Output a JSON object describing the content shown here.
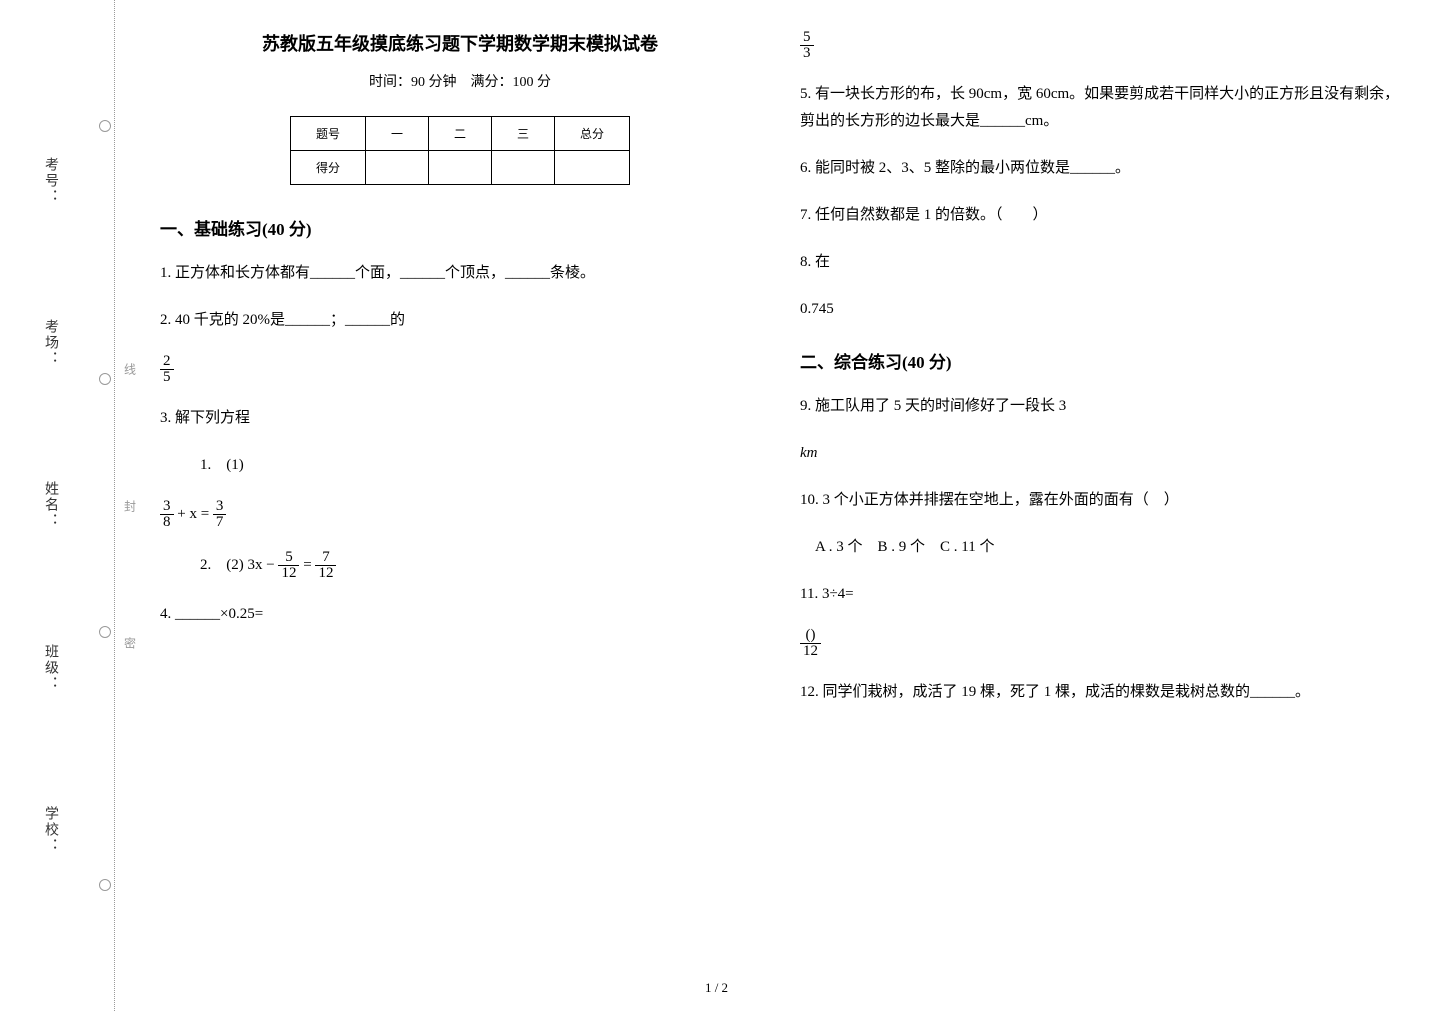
{
  "sidebar": {
    "labels": [
      "考号：",
      "考场：",
      "姓名：",
      "班级：",
      "学校："
    ],
    "dotted_words": [
      "线",
      "封",
      "密"
    ]
  },
  "header": {
    "title": "苏教版五年级摸底练习题下学期数学期末模拟试卷",
    "subtitle": "时间：90 分钟　满分：100 分"
  },
  "score_table": {
    "headers": [
      "题号",
      "一",
      "二",
      "三",
      "总分"
    ],
    "row_label": "得分"
  },
  "section1": {
    "title": "一、基础练习(40 分)",
    "q1": "1. 正方体和长方体都有______个面，______个顶点，______条棱。",
    "q2": {
      "text_a": "2. 40 千克的 20%是______；______的",
      "frac_num": "2",
      "frac_den": "5"
    },
    "q3": {
      "text": "3. 解下列方程",
      "sub1": "1.　(1)",
      "eq1_left_num": "3",
      "eq1_left_den": "8",
      "eq1_mid": "+ x =",
      "eq1_right_num": "3",
      "eq1_right_den": "7",
      "sub2": "2.　(2)",
      "eq2_a": "3x −",
      "eq2_b_num": "5",
      "eq2_b_den": "12",
      "eq2_c": "=",
      "eq2_d_num": "7",
      "eq2_d_den": "12"
    },
    "q4": "4. ______×0.25=",
    "q4_right_num": "5",
    "q4_right_den": "3",
    "q5": "5. 有一块长方形的布，长 90cm，宽 60cm。如果要剪成若干同样大小的正方形且没有剩余，剪出的长方形的边长最大是______cm。",
    "q6": "6. 能同时被 2、3、5 整除的最小两位数是______。",
    "q7": "7. 任何自然数都是 1 的倍数。（　　）",
    "q8": "8. 在",
    "q8b": "0.745"
  },
  "section2": {
    "title": "二、综合练习(40 分)",
    "q9": {
      "line1": "9. 施工队用了 5 天的时间修好了一段长 3",
      "unit": "km"
    },
    "q10": "10. 3 个小正方体并排摆在空地上，露在外面的面有（　）",
    "q10_opts": "　A . 3 个　B . 9 个　C . 11 个",
    "q11": {
      "text": "11. 3÷4=",
      "frac_num": "()",
      "frac_den": "12"
    },
    "q12": "12. 同学们栽树，成活了 19 棵，死了 1 棵，成活的棵数是栽树总数的______。"
  },
  "page_number": "1 / 2"
}
